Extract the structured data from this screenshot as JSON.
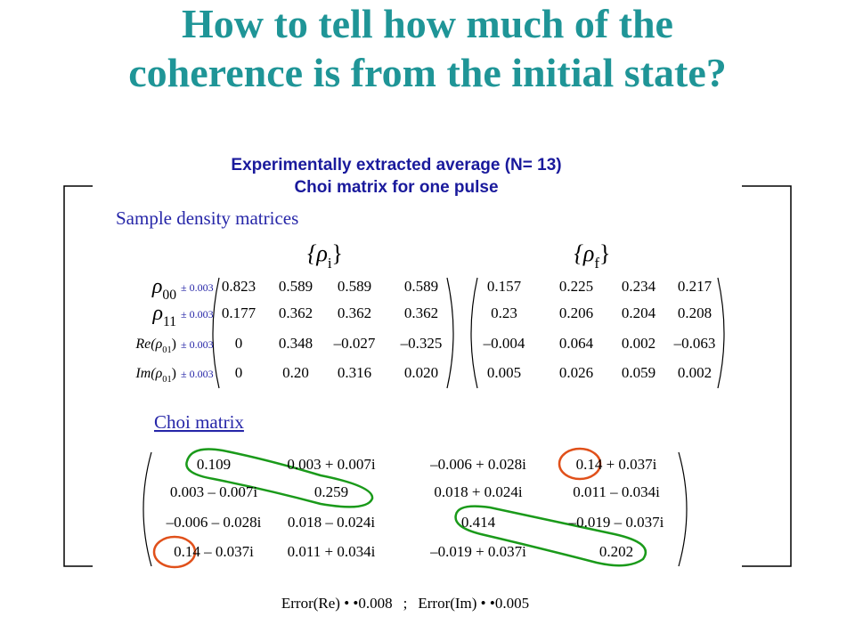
{
  "title": [
    "How to tell how much of the",
    "coherence is from the initial state?"
  ],
  "subtitle": [
    "Experimentally extracted average (N= 13)",
    "Choi matrix for one pulse"
  ],
  "sample_heading": "Sample density matrices",
  "rho_i": {
    "pre": "{ρ",
    "sub": "i",
    "post": "}"
  },
  "rho_f": {
    "pre": "{ρ",
    "sub": "f",
    "post": "}"
  },
  "row_labels": [
    {
      "pre": "ρ",
      "sub": "00",
      "error": "± 0.003"
    },
    {
      "pre": "ρ",
      "sub": "11",
      "error": "± 0.003"
    },
    {
      "pre": "Re(ρ",
      "sub": "01",
      "post": ")",
      "error": "± 0.003"
    },
    {
      "pre": "Im(ρ",
      "sub": "01",
      "post": ")",
      "error": "± 0.003"
    }
  ],
  "matrix_i": [
    [
      "0.823",
      "0.589",
      "0.589",
      "0.589"
    ],
    [
      "0.177",
      "0.362",
      "0.362",
      "0.362"
    ],
    [
      "0",
      "0.348",
      "–0.027",
      "–0.325"
    ],
    [
      "0",
      "0.20",
      "0.316",
      "0.020"
    ]
  ],
  "matrix_f": [
    [
      "0.157",
      "0.225",
      "0.234",
      "0.217"
    ],
    [
      "0.23",
      "0.206",
      "0.204",
      "0.208"
    ],
    [
      "–0.004",
      "0.064",
      "0.002",
      "–0.063"
    ],
    [
      "0.005",
      "0.026",
      "0.059",
      "0.002"
    ]
  ],
  "choi_heading": "Choi matrix",
  "choi": [
    [
      "0.109",
      "0.003 + 0.007i",
      "–0.006 + 0.028i",
      "0.14 + 0.037i"
    ],
    [
      "0.003 – 0.007i",
      "0.259",
      "0.018 + 0.024i",
      "0.011 – 0.034i"
    ],
    [
      "–0.006 – 0.028i",
      "0.018 – 0.024i",
      "0.414",
      "–0.019 – 0.037i"
    ],
    [
      "0.14 – 0.037i",
      "0.011 + 0.034i",
      "–0.019 + 0.037i",
      "0.202"
    ]
  ],
  "errors": [
    "Error(Re) • •0.008",
    ";",
    "Error(Im) • •0.005"
  ]
}
